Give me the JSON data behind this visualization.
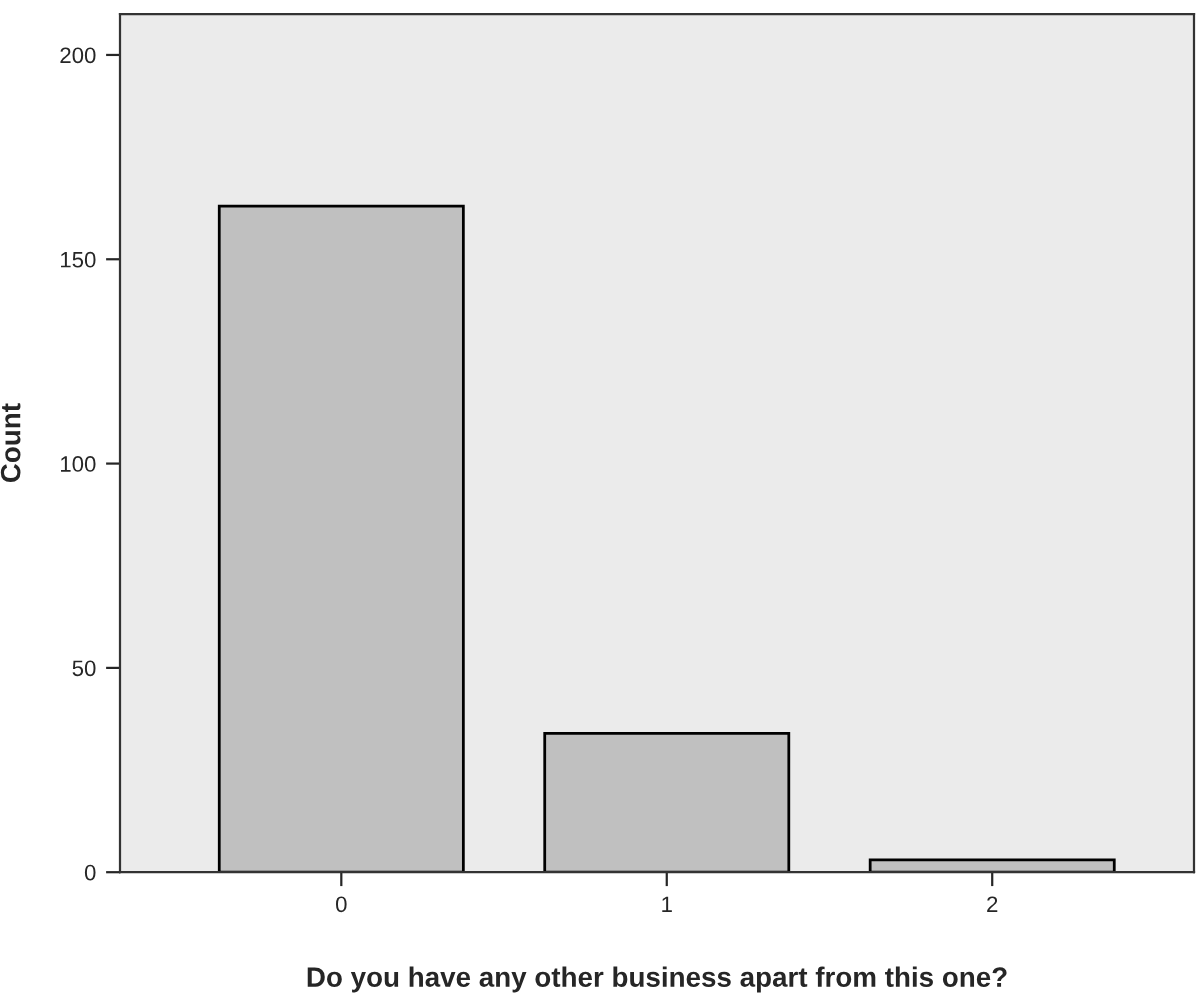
{
  "chart_data": {
    "type": "bar",
    "xlabel": "Do you have any other business apart from this one?",
    "ylabel": "Count",
    "categories": [
      "0",
      "1",
      "2"
    ],
    "values": [
      163,
      34,
      3
    ],
    "color": "#c0c0c0",
    "ylim": [
      0,
      210
    ],
    "yticks": [
      0,
      50,
      100,
      150,
      200
    ],
    "grid": false,
    "legend": false
  }
}
